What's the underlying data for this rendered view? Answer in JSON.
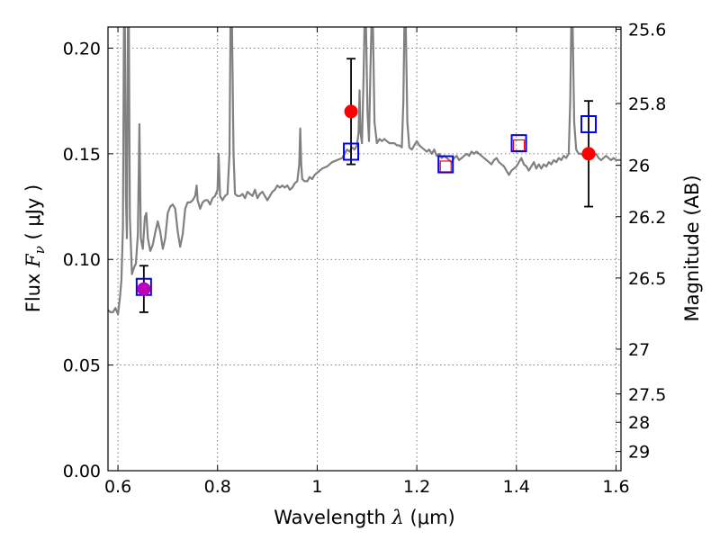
{
  "chart_data": {
    "type": "line",
    "xlabel": "Wavelength",
    "xlabel_symbol": "λ",
    "xlabel_unit": "(μm)",
    "ylabel": "Flux",
    "ylabel_symbol": "F",
    "ylabel_subscript": "ν",
    "ylabel_unit": "( μJy )",
    "y2label": "Magnitude (AB)",
    "xlim": [
      0.58,
      1.61
    ],
    "ylim": [
      0.0,
      0.21
    ],
    "grid": true,
    "x_ticks": [
      {
        "value": 0.6,
        "label": "0.6"
      },
      {
        "value": 0.8,
        "label": "0.8"
      },
      {
        "value": 1.0,
        "label": "1"
      },
      {
        "value": 1.2,
        "label": "1.2"
      },
      {
        "value": 1.4,
        "label": "1.4"
      },
      {
        "value": 1.6,
        "label": "1.6"
      }
    ],
    "y_ticks": [
      {
        "value": 0.0,
        "label": "0.00"
      },
      {
        "value": 0.05,
        "label": "0.05"
      },
      {
        "value": 0.1,
        "label": "0.10"
      },
      {
        "value": 0.15,
        "label": "0.15"
      },
      {
        "value": 0.2,
        "label": "0.20"
      }
    ],
    "y2_ticks": [
      {
        "value": 25.6,
        "label": "25.6"
      },
      {
        "value": 25.8,
        "label": "25.8"
      },
      {
        "value": 26.0,
        "label": "26"
      },
      {
        "value": 26.2,
        "label": "26.2"
      },
      {
        "value": 26.5,
        "label": "26.5"
      },
      {
        "value": 27.0,
        "label": "27"
      },
      {
        "value": 27.5,
        "label": "27.5"
      },
      {
        "value": 28.0,
        "label": "28"
      },
      {
        "value": 29.0,
        "label": "29"
      }
    ],
    "model_spectrum": {
      "color": "#808080",
      "points": [
        [
          0.58,
          0.076
        ],
        [
          0.585,
          0.075
        ],
        [
          0.59,
          0.075
        ],
        [
          0.595,
          0.077
        ],
        [
          0.6,
          0.074
        ],
        [
          0.604,
          0.082
        ],
        [
          0.607,
          0.09
        ],
        [
          0.61,
          0.115
        ],
        [
          0.612,
          0.21
        ],
        [
          0.614,
          0.21
        ],
        [
          0.616,
          0.13
        ],
        [
          0.618,
          0.11
        ],
        [
          0.62,
          0.21
        ],
        [
          0.622,
          0.21
        ],
        [
          0.624,
          0.12
        ],
        [
          0.628,
          0.093
        ],
        [
          0.632,
          0.096
        ],
        [
          0.636,
          0.098
        ],
        [
          0.64,
          0.112
        ],
        [
          0.643,
          0.164
        ],
        [
          0.646,
          0.11
        ],
        [
          0.65,
          0.105
        ],
        [
          0.654,
          0.12
        ],
        [
          0.657,
          0.122
        ],
        [
          0.66,
          0.11
        ],
        [
          0.665,
          0.104
        ],
        [
          0.67,
          0.107
        ],
        [
          0.675,
          0.113
        ],
        [
          0.68,
          0.118
        ],
        [
          0.685,
          0.113
        ],
        [
          0.69,
          0.105
        ],
        [
          0.695,
          0.11
        ],
        [
          0.7,
          0.122
        ],
        [
          0.705,
          0.125
        ],
        [
          0.71,
          0.126
        ],
        [
          0.715,
          0.124
        ],
        [
          0.72,
          0.113
        ],
        [
          0.725,
          0.106
        ],
        [
          0.73,
          0.112
        ],
        [
          0.735,
          0.124
        ],
        [
          0.74,
          0.127
        ],
        [
          0.745,
          0.127
        ],
        [
          0.75,
          0.128
        ],
        [
          0.755,
          0.13
        ],
        [
          0.758,
          0.135
        ],
        [
          0.76,
          0.128
        ],
        [
          0.765,
          0.124
        ],
        [
          0.77,
          0.127
        ],
        [
          0.775,
          0.128
        ],
        [
          0.78,
          0.128
        ],
        [
          0.785,
          0.126
        ],
        [
          0.79,
          0.129
        ],
        [
          0.795,
          0.13
        ],
        [
          0.8,
          0.133
        ],
        [
          0.802,
          0.15
        ],
        [
          0.805,
          0.13
        ],
        [
          0.81,
          0.128
        ],
        [
          0.815,
          0.13
        ],
        [
          0.82,
          0.131
        ],
        [
          0.824,
          0.15
        ],
        [
          0.826,
          0.21
        ],
        [
          0.829,
          0.21
        ],
        [
          0.832,
          0.15
        ],
        [
          0.835,
          0.131
        ],
        [
          0.84,
          0.13
        ],
        [
          0.845,
          0.13
        ],
        [
          0.85,
          0.131
        ],
        [
          0.855,
          0.129
        ],
        [
          0.86,
          0.132
        ],
        [
          0.865,
          0.131
        ],
        [
          0.87,
          0.13
        ],
        [
          0.875,
          0.133
        ],
        [
          0.88,
          0.129
        ],
        [
          0.885,
          0.131
        ],
        [
          0.89,
          0.132
        ],
        [
          0.895,
          0.13
        ],
        [
          0.9,
          0.128
        ],
        [
          0.905,
          0.13
        ],
        [
          0.91,
          0.132
        ],
        [
          0.915,
          0.133
        ],
        [
          0.92,
          0.135
        ],
        [
          0.925,
          0.134
        ],
        [
          0.93,
          0.135
        ],
        [
          0.935,
          0.134
        ],
        [
          0.94,
          0.135
        ],
        [
          0.945,
          0.133
        ],
        [
          0.95,
          0.134
        ],
        [
          0.955,
          0.136
        ],
        [
          0.96,
          0.137
        ],
        [
          0.964,
          0.145
        ],
        [
          0.966,
          0.162
        ],
        [
          0.968,
          0.145
        ],
        [
          0.97,
          0.138
        ],
        [
          0.975,
          0.137
        ],
        [
          0.98,
          0.137
        ],
        [
          0.985,
          0.139
        ],
        [
          0.99,
          0.138
        ],
        [
          0.995,
          0.14
        ],
        [
          1.0,
          0.141
        ],
        [
          1.01,
          0.143
        ],
        [
          1.02,
          0.144
        ],
        [
          1.03,
          0.146
        ],
        [
          1.04,
          0.147
        ],
        [
          1.05,
          0.148
        ],
        [
          1.055,
          0.15
        ],
        [
          1.06,
          0.152
        ],
        [
          1.065,
          0.151
        ],
        [
          1.07,
          0.153
        ],
        [
          1.075,
          0.152
        ],
        [
          1.08,
          0.154
        ],
        [
          1.083,
          0.16
        ],
        [
          1.085,
          0.18
        ],
        [
          1.087,
          0.16
        ],
        [
          1.09,
          0.155
        ],
        [
          1.093,
          0.185
        ],
        [
          1.095,
          0.21
        ],
        [
          1.098,
          0.21
        ],
        [
          1.101,
          0.17
        ],
        [
          1.104,
          0.156
        ],
        [
          1.107,
          0.19
        ],
        [
          1.109,
          0.21
        ],
        [
          1.112,
          0.21
        ],
        [
          1.115,
          0.165
        ],
        [
          1.12,
          0.155
        ],
        [
          1.125,
          0.157
        ],
        [
          1.13,
          0.156
        ],
        [
          1.135,
          0.157
        ],
        [
          1.14,
          0.156
        ],
        [
          1.145,
          0.155
        ],
        [
          1.15,
          0.155
        ],
        [
          1.155,
          0.155
        ],
        [
          1.16,
          0.154
        ],
        [
          1.165,
          0.154
        ],
        [
          1.17,
          0.153
        ],
        [
          1.173,
          0.175
        ],
        [
          1.175,
          0.21
        ],
        [
          1.178,
          0.21
        ],
        [
          1.181,
          0.165
        ],
        [
          1.185,
          0.153
        ],
        [
          1.19,
          0.152
        ],
        [
          1.195,
          0.154
        ],
        [
          1.2,
          0.156
        ],
        [
          1.205,
          0.154
        ],
        [
          1.21,
          0.153
        ],
        [
          1.215,
          0.152
        ],
        [
          1.22,
          0.151
        ],
        [
          1.225,
          0.152
        ],
        [
          1.23,
          0.15
        ],
        [
          1.235,
          0.152
        ],
        [
          1.24,
          0.149
        ],
        [
          1.245,
          0.15
        ],
        [
          1.25,
          0.148
        ],
        [
          1.255,
          0.149
        ],
        [
          1.26,
          0.148
        ],
        [
          1.265,
          0.147
        ],
        [
          1.27,
          0.146
        ],
        [
          1.275,
          0.148
        ],
        [
          1.28,
          0.149
        ],
        [
          1.285,
          0.147
        ],
        [
          1.29,
          0.148
        ],
        [
          1.295,
          0.149
        ],
        [
          1.3,
          0.15
        ],
        [
          1.305,
          0.149
        ],
        [
          1.31,
          0.151
        ],
        [
          1.315,
          0.15
        ],
        [
          1.32,
          0.151
        ],
        [
          1.325,
          0.15
        ],
        [
          1.33,
          0.149
        ],
        [
          1.335,
          0.148
        ],
        [
          1.34,
          0.147
        ],
        [
          1.345,
          0.146
        ],
        [
          1.35,
          0.145
        ],
        [
          1.355,
          0.147
        ],
        [
          1.36,
          0.148
        ],
        [
          1.365,
          0.146
        ],
        [
          1.37,
          0.145
        ],
        [
          1.375,
          0.144
        ],
        [
          1.38,
          0.142
        ],
        [
          1.385,
          0.14
        ],
        [
          1.39,
          0.142
        ],
        [
          1.395,
          0.143
        ],
        [
          1.4,
          0.144
        ],
        [
          1.405,
          0.146
        ],
        [
          1.41,
          0.148
        ],
        [
          1.415,
          0.145
        ],
        [
          1.42,
          0.144
        ],
        [
          1.425,
          0.142
        ],
        [
          1.43,
          0.144
        ],
        [
          1.435,
          0.146
        ],
        [
          1.44,
          0.143
        ],
        [
          1.445,
          0.145
        ],
        [
          1.45,
          0.143
        ],
        [
          1.455,
          0.145
        ],
        [
          1.46,
          0.144
        ],
        [
          1.465,
          0.146
        ],
        [
          1.47,
          0.145
        ],
        [
          1.475,
          0.147
        ],
        [
          1.48,
          0.146
        ],
        [
          1.485,
          0.148
        ],
        [
          1.49,
          0.147
        ],
        [
          1.495,
          0.149
        ],
        [
          1.5,
          0.148
        ],
        [
          1.505,
          0.15
        ],
        [
          1.508,
          0.175
        ],
        [
          1.51,
          0.21
        ],
        [
          1.513,
          0.21
        ],
        [
          1.516,
          0.165
        ],
        [
          1.52,
          0.152
        ],
        [
          1.525,
          0.15
        ],
        [
          1.53,
          0.15
        ],
        [
          1.535,
          0.149
        ],
        [
          1.54,
          0.149
        ],
        [
          1.545,
          0.15
        ],
        [
          1.55,
          0.15
        ],
        [
          1.555,
          0.149
        ],
        [
          1.56,
          0.15
        ],
        [
          1.565,
          0.148
        ],
        [
          1.57,
          0.147
        ],
        [
          1.575,
          0.148
        ],
        [
          1.58,
          0.149
        ],
        [
          1.585,
          0.148
        ],
        [
          1.59,
          0.147
        ],
        [
          1.595,
          0.148
        ],
        [
          1.6,
          0.147
        ],
        [
          1.605,
          0.147
        ],
        [
          1.61,
          0.147
        ]
      ]
    },
    "observed_points": [
      {
        "x": 0.652,
        "y": 0.086,
        "yerr_low": 0.011,
        "yerr_high": 0.011,
        "color": "#bb00bb"
      },
      {
        "x": 1.068,
        "y": 0.17,
        "yerr_low": 0.025,
        "yerr_high": 0.025,
        "color": "#ff0000"
      },
      {
        "x": 1.545,
        "y": 0.15,
        "yerr_low": 0.025,
        "yerr_high": 0.025,
        "color": "#ff0000"
      }
    ],
    "model_photometry": [
      {
        "x": 0.652,
        "y": 0.087,
        "color": "#0000ff"
      },
      {
        "x": 1.068,
        "y": 0.151,
        "color": "#0000ff"
      },
      {
        "x": 1.258,
        "y": 0.145,
        "color": "#0000ff"
      },
      {
        "x": 1.405,
        "y": 0.155,
        "color": "#0000ff"
      },
      {
        "x": 1.545,
        "y": 0.164,
        "color": "#0000ff"
      }
    ],
    "small_red_squares": [
      {
        "x": 1.258,
        "y": 0.144,
        "color": "#ff0000"
      },
      {
        "x": 1.405,
        "y": 0.154,
        "color": "#ff0000"
      }
    ]
  }
}
